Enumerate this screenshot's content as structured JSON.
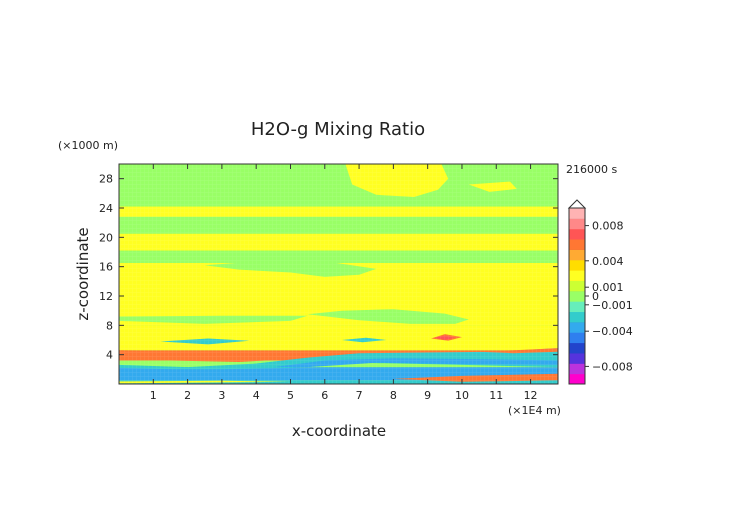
{
  "chart_data": {
    "type": "heatmap",
    "title": "H2O-g Mixing Ratio",
    "xlabel": "x-coordinate",
    "ylabel": "z-coordinate",
    "x_unit": "(×1E4 m)",
    "y_unit": "(×1000 m)",
    "time_label": "216000 s",
    "xlim": [
      0,
      12.8
    ],
    "ylim": [
      0,
      30
    ],
    "x_ticks": [
      1,
      2,
      3,
      4,
      5,
      6,
      7,
      8,
      9,
      10,
      11,
      12
    ],
    "y_ticks": [
      4,
      8,
      12,
      16,
      20,
      24,
      28
    ],
    "colorbar": {
      "labels": [
        "0.008",
        "0.004",
        "0.001",
        "0",
        "−0.001",
        "−0.004",
        "−0.008"
      ],
      "values": [
        0.008,
        0.004,
        0.001,
        0,
        -0.001,
        -0.004,
        -0.008
      ],
      "range": [
        -0.01,
        0.01
      ],
      "colors": [
        "#ff00cc",
        "#bb33dd",
        "#5533dd",
        "#2244cc",
        "#2f7fef",
        "#33aaee",
        "#33cccc",
        "#66eebb",
        "#99ff66",
        "#ccff33",
        "#ffff22",
        "#ffdd00",
        "#ffaa33",
        "#ff7733",
        "#ff5555",
        "#ff8888",
        "#ffb3b3"
      ]
    },
    "bands": [
      {
        "from": 0,
        "to": 0.5,
        "level": "-0.001"
      },
      {
        "from": 0.5,
        "to": 2.3,
        "level": "-0.004"
      },
      {
        "from": 2.3,
        "to": 3.2,
        "level": "0"
      },
      {
        "from": 3.2,
        "to": 4.6,
        "level": "0.004"
      },
      {
        "from": 4.6,
        "to": 8,
        "level": "0.001"
      },
      {
        "from": 8,
        "to": 16.5,
        "level": "0.001"
      },
      {
        "from": 16.5,
        "to": 18.2,
        "level": "0"
      },
      {
        "from": 18.2,
        "to": 20.5,
        "level": "0.001"
      },
      {
        "from": 20.5,
        "to": 22.8,
        "level": "0"
      },
      {
        "from": 22.8,
        "to": 24.2,
        "level": "0.001"
      },
      {
        "from": 24.2,
        "to": 30,
        "level": "0"
      }
    ]
  }
}
